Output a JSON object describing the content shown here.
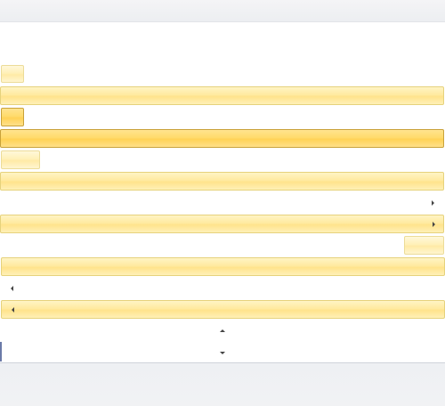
{
  "window": {
    "title": ""
  },
  "controls": {
    "button_small_1": {
      "label": ""
    },
    "bar_1": {
      "label": ""
    },
    "button_small_pressed": {
      "label": ""
    },
    "bar_pressed": {
      "label": ""
    },
    "button_medium": {
      "label": ""
    },
    "bar_3": {
      "label": ""
    },
    "dropdown_row_label": "",
    "dropdown_bar": {
      "label": ""
    },
    "right_button": {
      "label": ""
    },
    "bar_5": {
      "label": ""
    },
    "left_row_label": "",
    "left_dropdown_bar": {
      "label": ""
    },
    "spinner": {
      "value": ""
    }
  },
  "icons": {
    "expand_right": "chevron-right-icon",
    "expand_left": "chevron-left-icon",
    "spin_up": "chevron-up-icon",
    "spin_down": "chevron-down-icon"
  },
  "colors": {
    "hover_yellow": "#ffe9a0",
    "pressed_yellow": "#ffd257",
    "border_gold": "#c9a23a"
  }
}
